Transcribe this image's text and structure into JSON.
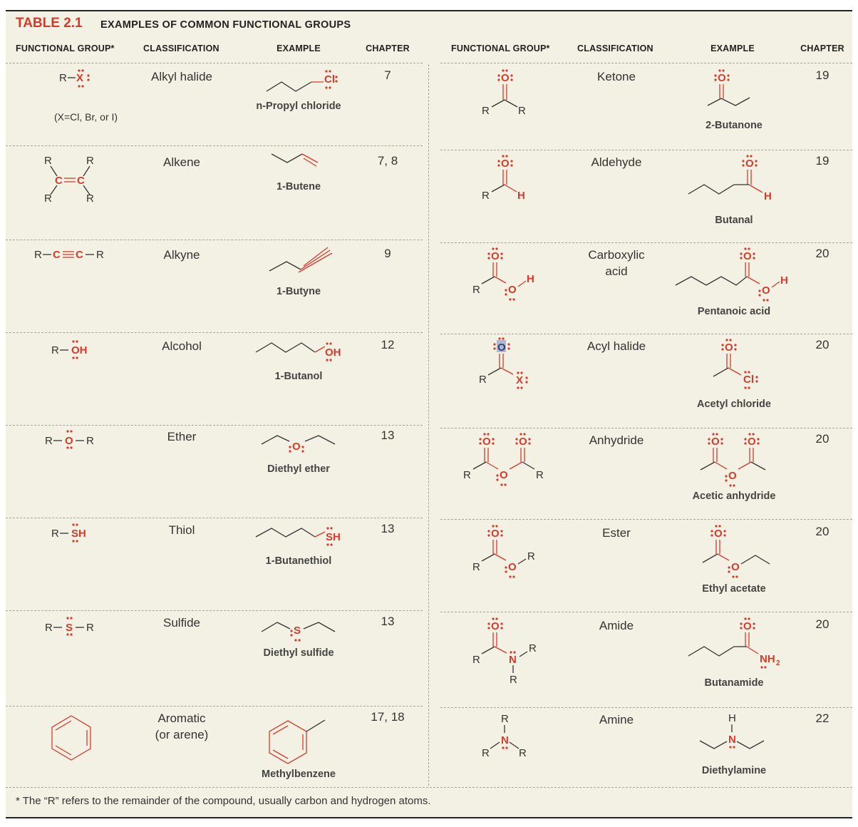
{
  "table": {
    "number": "TABLE 2.1",
    "title": "EXAMPLES OF COMMON FUNCTIONAL GROUPS",
    "footnote": "* The “R” refers to the remainder of the compound, usually carbon and hydrogen atoms."
  },
  "headers": {
    "functional_group": "FUNCTIONAL GROUP*",
    "classification": "CLASSIFICATION",
    "example": "EXAMPLE",
    "chapter": "CHAPTER"
  },
  "alkyl_halide_note": "(X=Cl, Br, or I)",
  "left_rows": [
    {
      "classification": "Alkyl halide",
      "example": "n-Propyl chloride",
      "chapter": "7"
    },
    {
      "classification": "Alkene",
      "example": "1-Butene",
      "chapter": "7, 8"
    },
    {
      "classification": "Alkyne",
      "example": "1-Butyne",
      "chapter": "9"
    },
    {
      "classification": "Alcohol",
      "example": "1-Butanol",
      "chapter": "12"
    },
    {
      "classification": "Ether",
      "example": "Diethyl ether",
      "chapter": "13"
    },
    {
      "classification": "Thiol",
      "example": "1-Butanethiol",
      "chapter": "13"
    },
    {
      "classification": "Sulfide",
      "example": "Diethyl sulfide",
      "chapter": "13"
    },
    {
      "classification": "Aromatic\n(or arene)",
      "example": "Methylbenzene",
      "chapter": "17, 18"
    }
  ],
  "right_rows": [
    {
      "classification": "Ketone",
      "example": "2-Butanone",
      "chapter": "19"
    },
    {
      "classification": "Aldehyde",
      "example": "Butanal",
      "chapter": "19"
    },
    {
      "classification": "Carboxylic\nacid",
      "example": "Pentanoic acid",
      "chapter": "20"
    },
    {
      "classification": "Acyl halide",
      "example": "Acetyl chloride",
      "chapter": "20"
    },
    {
      "classification": "Anhydride",
      "example": "Acetic anhydride",
      "chapter": "20"
    },
    {
      "classification": "Ester",
      "example": "Ethyl acetate",
      "chapter": "20"
    },
    {
      "classification": "Amide",
      "example": "Butanamide",
      "chapter": "20"
    },
    {
      "classification": "Amine",
      "example": "Diethylamine",
      "chapter": "22"
    }
  ],
  "colors": {
    "accent": "#d63a2a",
    "background": "#f3f0e4",
    "rule": "#a8a49a"
  }
}
